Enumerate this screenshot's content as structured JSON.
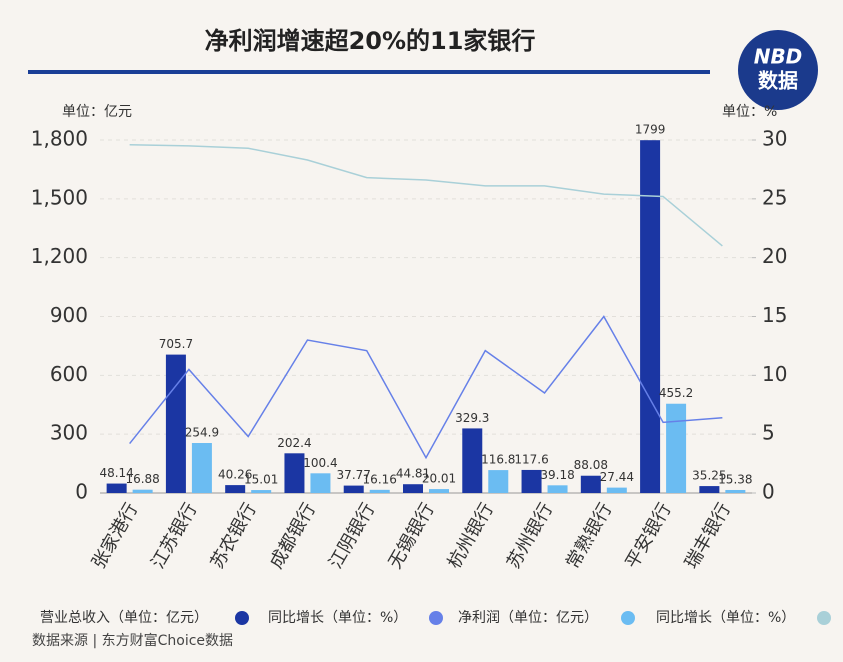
{
  "logo": {
    "top": "NBD",
    "bottom": "数据"
  },
  "chart_data": {
    "type": "bar",
    "title": "净利润增速超20%的11家银行",
    "y_unit": "单位：亿元",
    "y2_unit": "单位：%",
    "source": "数据来源 | 东方财富Choice数据",
    "categories": [
      "张家港行",
      "江苏银行",
      "苏农银行",
      "成都银行",
      "江阴银行",
      "无锡银行",
      "杭州银行",
      "苏州银行",
      "常熟银行",
      "平安银行",
      "瑞丰银行"
    ],
    "series": [
      {
        "name": "营业总收入（单位：亿元）",
        "color": "#1b36a3",
        "type": "bar",
        "values": [
          48.14,
          705.7,
          40.26,
          202.4,
          37.77,
          44.81,
          329.3,
          117.6,
          88.08,
          1799,
          35.25
        ]
      },
      {
        "name": "同比增长（单位：%）",
        "color": "#6680e8",
        "type": "line",
        "axis": "y2",
        "values": [
          4.2,
          10.5,
          4.8,
          13.0,
          12.1,
          3.0,
          12.1,
          8.5,
          15.0,
          6.0,
          6.4
        ]
      },
      {
        "name": "净利润（单位：亿元）",
        "color": "#6bbcf2",
        "type": "bar",
        "values": [
          16.88,
          254.9,
          15.01,
          100.4,
          16.16,
          20.01,
          116.8,
          39.18,
          27.44,
          455.2,
          15.38
        ]
      },
      {
        "name": "同比增长（单位：%）",
        "color": "#a9d0d8",
        "type": "line",
        "axis": "y2",
        "values": [
          29.6,
          29.5,
          29.3,
          28.3,
          26.8,
          26.6,
          26.1,
          26.1,
          25.4,
          25.2,
          21.0
        ]
      }
    ],
    "ylim": [
      0,
      1800
    ],
    "yticks": [
      0,
      300,
      600,
      900,
      {
        "value": 1200,
        "label": "1,200"
      },
      {
        "value": 1500,
        "label": "1,500"
      },
      {
        "value": 1800,
        "label": "1,800"
      }
    ],
    "y2lim": [
      0,
      30
    ],
    "y2ticks": [
      0,
      5,
      10,
      15,
      20,
      25,
      30
    ]
  }
}
